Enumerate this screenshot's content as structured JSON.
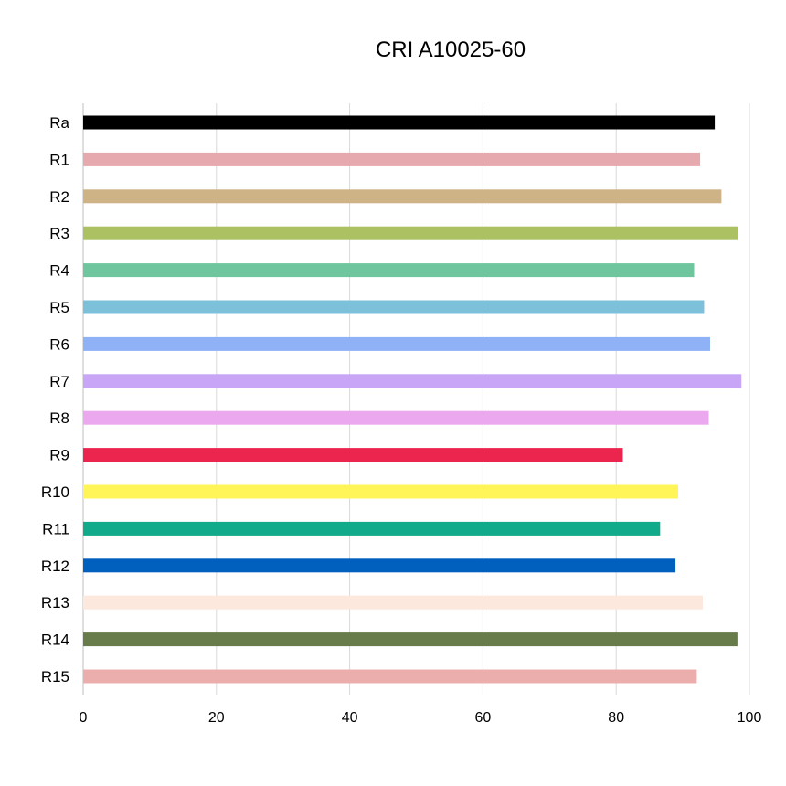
{
  "chart_data": {
    "type": "bar",
    "orientation": "horizontal",
    "title": "CRI A10025-60",
    "xlabel": "",
    "ylabel": "",
    "xlim": [
      0,
      100
    ],
    "x_ticks": [
      "0",
      "20",
      "40",
      "60",
      "80",
      "100"
    ],
    "grid": true,
    "legend": "none",
    "categories": [
      "Ra",
      "R1",
      "R2",
      "R3",
      "R4",
      "R5",
      "R6",
      "R7",
      "R8",
      "R9",
      "R10",
      "R11",
      "R12",
      "R13",
      "R14",
      "R15"
    ],
    "values": [
      94.8,
      92.6,
      95.8,
      98.3,
      91.7,
      93.2,
      94.1,
      98.8,
      93.9,
      81.0,
      89.3,
      86.6,
      88.9,
      93.0,
      98.2,
      92.1
    ],
    "colors": [
      "#000000",
      "#e6a9ae",
      "#cdb385",
      "#abc162",
      "#6fc59e",
      "#7dc0d9",
      "#8fb1f6",
      "#c9a5f8",
      "#eca8ee",
      "#ec254e",
      "#fff458",
      "#11ab8b",
      "#015fbe",
      "#fce8dc",
      "#677b4b",
      "#ecadad"
    ]
  }
}
